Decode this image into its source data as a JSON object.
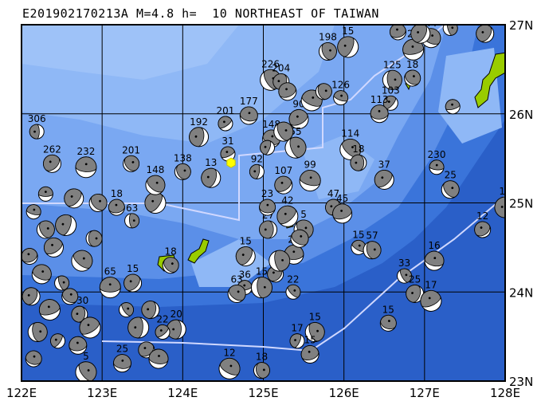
{
  "title": "E201902170213A M=4.8 h=  10 NORTHEAST OF TAIWAN",
  "map": {
    "lon_range": [
      122,
      128
    ],
    "lat_range": [
      23,
      27
    ],
    "lon_ticks": [
      "122E",
      "123E",
      "124E",
      "125E",
      "126E",
      "127E",
      "128E"
    ],
    "lat_ticks": [
      "27N",
      "26N",
      "25N",
      "24N",
      "23N"
    ],
    "epicenter": {
      "lon": 124.6,
      "lat": 25.45,
      "color": "#ffff00"
    },
    "colors": {
      "land": "#99cc00",
      "boundary": "#d0d8ff",
      "compression": "#808080",
      "dilatation": "#ffffff"
    }
  },
  "events": [
    {
      "lon": 122.19,
      "lat": 25.8,
      "label": "306"
    },
    {
      "lon": 122.38,
      "lat": 25.44,
      "label": "262"
    },
    {
      "lon": 122.8,
      "lat": 25.4,
      "label": "232"
    },
    {
      "lon": 123.36,
      "lat": 25.44,
      "label": "201"
    },
    {
      "lon": 124.2,
      "lat": 25.74,
      "label": "192"
    },
    {
      "lon": 124.53,
      "lat": 25.89,
      "label": "201"
    },
    {
      "lon": 124.82,
      "lat": 25.98,
      "label": "177"
    },
    {
      "lon": 125.09,
      "lat": 26.38,
      "label": "226"
    },
    {
      "lon": 125.22,
      "lat": 26.36,
      "label": "204"
    },
    {
      "lon": 125.44,
      "lat": 25.94,
      "label": "90"
    },
    {
      "lon": 125.96,
      "lat": 26.18,
      "label": "126"
    },
    {
      "lon": 125.8,
      "lat": 26.7,
      "label": "198"
    },
    {
      "lon": 126.05,
      "lat": 26.75,
      "label": "15"
    },
    {
      "lon": 126.67,
      "lat": 26.92,
      "label": "148"
    },
    {
      "lon": 127.08,
      "lat": 26.85,
      "label": "44"
    },
    {
      "lon": 127.32,
      "lat": 26.96,
      "label": "104"
    },
    {
      "lon": 127.75,
      "lat": 26.9,
      "label": "53"
    },
    {
      "lon": 126.86,
      "lat": 26.72,
      "label": "22"
    },
    {
      "lon": 126.85,
      "lat": 26.4,
      "label": "18"
    },
    {
      "lon": 126.6,
      "lat": 26.38,
      "label": "125"
    },
    {
      "lon": 126.58,
      "lat": 26.12,
      "label": "103"
    },
    {
      "lon": 126.44,
      "lat": 26.0,
      "label": "113"
    },
    {
      "lon": 126.08,
      "lat": 25.6,
      "label": "114"
    },
    {
      "lon": 126.18,
      "lat": 25.45,
      "label": "18"
    },
    {
      "lon": 126.5,
      "lat": 25.26,
      "label": "37"
    },
    {
      "lon": 127.15,
      "lat": 25.4,
      "label": "230"
    },
    {
      "lon": 127.32,
      "lat": 25.15,
      "label": "25"
    },
    {
      "lon": 128.0,
      "lat": 24.95,
      "label": "14"
    },
    {
      "lon": 127.72,
      "lat": 24.7,
      "label": "12"
    },
    {
      "lon": 127.12,
      "lat": 24.35,
      "label": "16"
    },
    {
      "lon": 126.75,
      "lat": 24.18,
      "label": "33"
    },
    {
      "lon": 126.88,
      "lat": 23.98,
      "label": "25"
    },
    {
      "lon": 127.08,
      "lat": 23.9,
      "label": "17"
    },
    {
      "lon": 126.55,
      "lat": 23.65,
      "label": "15"
    },
    {
      "lon": 125.64,
      "lat": 23.55,
      "label": "15"
    },
    {
      "lon": 125.42,
      "lat": 23.45,
      "label": "17"
    },
    {
      "lon": 125.58,
      "lat": 23.3,
      "label": "15"
    },
    {
      "lon": 124.58,
      "lat": 23.14,
      "label": "12"
    },
    {
      "lon": 124.98,
      "lat": 23.12,
      "label": "18"
    },
    {
      "lon": 124.78,
      "lat": 24.4,
      "label": "15"
    },
    {
      "lon": 124.77,
      "lat": 24.05,
      "label": "36"
    },
    {
      "lon": 124.67,
      "lat": 23.98,
      "label": "63"
    },
    {
      "lon": 124.98,
      "lat": 24.05,
      "label": "15"
    },
    {
      "lon": 125.15,
      "lat": 24.2,
      "label": "21"
    },
    {
      "lon": 125.38,
      "lat": 24.42,
      "label": "25"
    },
    {
      "lon": 125.37,
      "lat": 24.0,
      "label": "22"
    },
    {
      "lon": 125.06,
      "lat": 24.7,
      "label": "27"
    },
    {
      "lon": 125.3,
      "lat": 24.85,
      "label": "42"
    },
    {
      "lon": 125.05,
      "lat": 24.95,
      "label": "23"
    },
    {
      "lon": 125.5,
      "lat": 24.7,
      "label": "5"
    },
    {
      "lon": 124.92,
      "lat": 25.35,
      "label": "92"
    },
    {
      "lon": 125.25,
      "lat": 25.2,
      "label": "107"
    },
    {
      "lon": 125.58,
      "lat": 25.25,
      "label": "99"
    },
    {
      "lon": 124.0,
      "lat": 25.35,
      "label": "138"
    },
    {
      "lon": 124.35,
      "lat": 25.28,
      "label": "13"
    },
    {
      "lon": 124.56,
      "lat": 25.55,
      "label": "31"
    },
    {
      "lon": 125.1,
      "lat": 25.72,
      "label": "148"
    },
    {
      "lon": 125.4,
      "lat": 25.62,
      "label": "55"
    },
    {
      "lon": 125.87,
      "lat": 24.95,
      "label": "47"
    },
    {
      "lon": 125.98,
      "lat": 24.88,
      "label": "45"
    },
    {
      "lon": 126.18,
      "lat": 24.5,
      "label": "15"
    },
    {
      "lon": 126.35,
      "lat": 24.47,
      "label": "57"
    },
    {
      "lon": 123.66,
      "lat": 25.0,
      "label": "48"
    },
    {
      "lon": 123.18,
      "lat": 24.95,
      "label": "18"
    },
    {
      "lon": 123.66,
      "lat": 25.2,
      "label": "148"
    },
    {
      "lon": 123.37,
      "lat": 24.8,
      "label": "63"
    },
    {
      "lon": 123.38,
      "lat": 24.1,
      "label": "15"
    },
    {
      "lon": 123.1,
      "lat": 24.05,
      "label": "65"
    },
    {
      "lon": 123.85,
      "lat": 24.3,
      "label": "18"
    },
    {
      "lon": 123.92,
      "lat": 23.58,
      "label": "20"
    },
    {
      "lon": 123.75,
      "lat": 23.55,
      "label": "22"
    },
    {
      "lon": 123.25,
      "lat": 23.2,
      "label": "25"
    },
    {
      "lon": 122.8,
      "lat": 23.1,
      "label": "5"
    },
    {
      "lon": 122.72,
      "lat": 23.75,
      "label": "330"
    },
    {
      "lon": 122.4,
      "lat": 24.5,
      "label": ""
    },
    {
      "lon": 122.15,
      "lat": 24.9,
      "label": ""
    },
    {
      "lon": 122.3,
      "lat": 24.7,
      "label": ""
    },
    {
      "lon": 122.55,
      "lat": 24.75,
      "label": ""
    },
    {
      "lon": 122.1,
      "lat": 24.4,
      "label": ""
    },
    {
      "lon": 122.25,
      "lat": 24.2,
      "label": ""
    },
    {
      "lon": 122.5,
      "lat": 24.1,
      "label": ""
    },
    {
      "lon": 122.12,
      "lat": 23.95,
      "label": ""
    },
    {
      "lon": 122.35,
      "lat": 23.8,
      "label": ""
    },
    {
      "lon": 122.6,
      "lat": 23.95,
      "label": ""
    },
    {
      "lon": 122.2,
      "lat": 23.55,
      "label": ""
    },
    {
      "lon": 122.45,
      "lat": 23.45,
      "label": ""
    },
    {
      "lon": 122.7,
      "lat": 23.4,
      "label": ""
    },
    {
      "lon": 122.75,
      "lat": 24.35,
      "label": ""
    },
    {
      "lon": 122.9,
      "lat": 24.6,
      "label": ""
    },
    {
      "lon": 122.65,
      "lat": 25.05,
      "label": ""
    },
    {
      "lon": 122.3,
      "lat": 25.1,
      "label": ""
    },
    {
      "lon": 122.95,
      "lat": 25.0,
      "label": ""
    },
    {
      "lon": 123.45,
      "lat": 23.6,
      "label": ""
    },
    {
      "lon": 123.55,
      "lat": 23.35,
      "label": ""
    },
    {
      "lon": 123.7,
      "lat": 23.25,
      "label": ""
    },
    {
      "lon": 123.3,
      "lat": 23.8,
      "label": ""
    },
    {
      "lon": 123.6,
      "lat": 23.8,
      "label": ""
    },
    {
      "lon": 122.85,
      "lat": 23.6,
      "label": ""
    },
    {
      "lon": 122.15,
      "lat": 23.25,
      "label": ""
    },
    {
      "lon": 125.25,
      "lat": 25.8,
      "label": ""
    },
    {
      "lon": 125.05,
      "lat": 25.62,
      "label": ""
    },
    {
      "lon": 125.3,
      "lat": 26.25,
      "label": ""
    },
    {
      "lon": 125.6,
      "lat": 26.15,
      "label": ""
    },
    {
      "lon": 125.75,
      "lat": 26.25,
      "label": ""
    },
    {
      "lon": 126.95,
      "lat": 26.9,
      "label": ""
    },
    {
      "lon": 127.35,
      "lat": 26.08,
      "label": ""
    },
    {
      "lon": 125.45,
      "lat": 24.6,
      "label": ""
    },
    {
      "lon": 125.2,
      "lat": 24.35,
      "label": ""
    }
  ]
}
